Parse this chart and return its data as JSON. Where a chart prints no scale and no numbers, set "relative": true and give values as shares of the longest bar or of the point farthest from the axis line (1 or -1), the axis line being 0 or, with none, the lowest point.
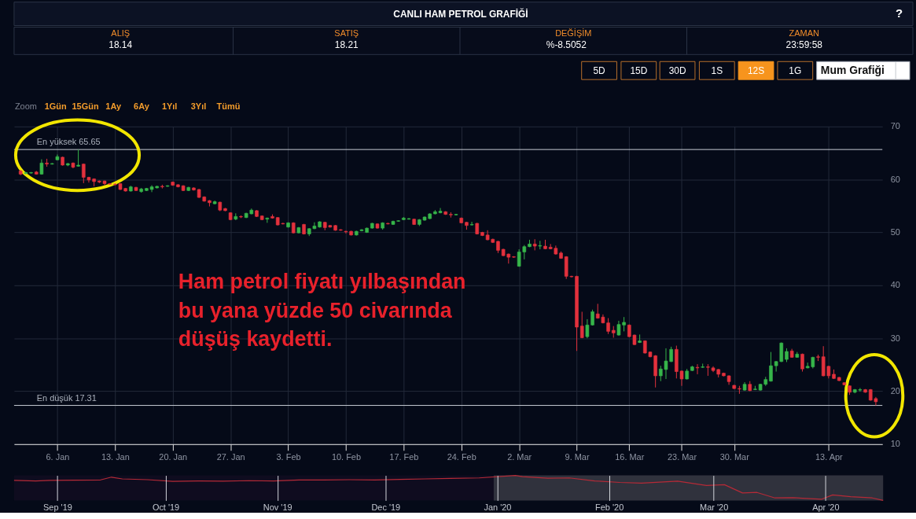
{
  "chart_data": [
    {
      "type": "other",
      "title": "CANLI HAM PETROL GRAFİĞİ",
      "annotations": [
        "ALIŞ",
        "18.14",
        "SATIŞ",
        "18.21",
        "DEĞİŞİM",
        "%-8.5052",
        "ZAMAN",
        "23:59:58",
        "5D",
        "15D",
        "30D",
        "1S",
        "12S",
        "1G",
        "Mum Grafiği",
        "Zoom",
        "1Gün",
        "15Gün",
        "1Ay",
        "6Ay",
        "1Yıl",
        "3Yıl",
        "Tümü",
        "?"
      ]
    },
    {
      "type": "candlestick",
      "categories": [
        null,
        null,
        null,
        null,
        null,
        null,
        null,
        "6. Jan",
        null,
        null,
        null,
        null,
        null,
        null,
        null,
        null,
        null,
        null,
        "13. Jan",
        null,
        null,
        null,
        null,
        null,
        null,
        null,
        null,
        null,
        null,
        "20. Jan",
        null,
        null,
        null,
        null,
        null,
        null,
        null,
        null,
        null,
        null,
        "27. Jan",
        null,
        null,
        null,
        null,
        null,
        null,
        null,
        null,
        null,
        null,
        "3. Feb",
        null,
        null,
        null,
        null,
        null,
        null,
        null,
        null,
        null,
        null,
        "10. Feb",
        null,
        null,
        null,
        null,
        null,
        null,
        null,
        null,
        null,
        null,
        "17. Feb",
        null,
        null,
        null,
        null,
        null,
        null,
        null,
        null,
        null,
        null,
        "24. Feb",
        null,
        null,
        null,
        null,
        null,
        null,
        null,
        null,
        null,
        null,
        "2. Mar",
        null,
        null,
        null,
        null,
        null,
        null,
        null,
        null,
        null,
        null,
        "9. Mar",
        null,
        null,
        null,
        null,
        null,
        null,
        null,
        null,
        null,
        "16. Mar",
        null,
        null,
        null,
        null,
        null,
        null,
        null,
        null,
        null,
        "23. Mar",
        null,
        null,
        null,
        null,
        null,
        null,
        null,
        null,
        null,
        "30. Mar",
        null,
        null,
        null,
        null,
        null,
        null,
        null,
        null,
        null,
        null,
        null,
        null,
        null,
        null,
        null,
        null,
        null,
        "13. Apr",
        null,
        null,
        null,
        null,
        null,
        null,
        null,
        null,
        null
      ],
      "ohlc": [
        [
          61.6,
          61.8,
          60.8,
          61.0
        ],
        [
          61.1,
          61.4,
          61.0,
          61.3
        ],
        [
          61.2,
          61.4,
          61.1,
          61.3
        ],
        [
          61.4,
          61.6,
          60.9,
          61.0
        ],
        [
          61.0,
          63.8,
          60.9,
          63.1
        ],
        [
          63.1,
          63.9,
          62.4,
          62.9
        ],
        [
          62.9,
          63.1,
          62.8,
          63.0
        ],
        [
          63.7,
          64.7,
          63.6,
          64.3
        ],
        [
          64.2,
          64.3,
          62.6,
          62.7
        ],
        [
          62.7,
          63.1,
          62.5,
          63.0
        ],
        [
          63.1,
          63.2,
          62.1,
          62.3
        ],
        [
          62.5,
          65.65,
          62.4,
          62.7
        ],
        [
          62.9,
          63.0,
          59.3,
          60.4
        ],
        [
          60.4,
          60.5,
          59.4,
          59.9
        ],
        [
          60.1,
          60.2,
          58.7,
          59.6
        ],
        [
          59.7,
          59.8,
          59.3,
          59.5
        ],
        [
          59.7,
          59.8,
          58.9,
          59.2
        ],
        [
          59.2,
          59.3,
          59.0,
          59.1
        ],
        [
          59.1,
          59.3,
          58.9,
          59.0
        ],
        [
          59.2,
          59.3,
          58.0,
          58.1
        ],
        [
          58.3,
          58.4,
          57.7,
          57.8
        ],
        [
          57.8,
          58.8,
          57.7,
          58.6
        ],
        [
          58.5,
          58.6,
          57.8,
          57.9
        ],
        [
          57.7,
          58.4,
          57.5,
          58.2
        ],
        [
          57.9,
          58.4,
          57.8,
          58.3
        ],
        [
          58.1,
          58.9,
          57.6,
          58.6
        ],
        [
          58.4,
          58.8,
          58.3,
          58.7
        ],
        [
          58.7,
          59.0,
          58.3,
          58.6
        ],
        [
          58.7,
          58.9,
          58.6,
          58.8
        ],
        [
          59.5,
          59.6,
          58.8,
          58.9
        ],
        [
          59.0,
          59.1,
          58.5,
          58.6
        ],
        [
          58.8,
          58.9,
          57.8,
          57.9
        ],
        [
          57.9,
          58.6,
          57.8,
          58.5
        ],
        [
          58.4,
          58.5,
          57.9,
          58.0
        ],
        [
          58.1,
          58.2,
          56.5,
          56.6
        ],
        [
          56.7,
          56.8,
          55.8,
          55.9
        ],
        [
          56.0,
          56.1,
          54.9,
          55.6
        ],
        [
          55.4,
          56.0,
          55.3,
          55.8
        ],
        [
          55.7,
          55.8,
          54.0,
          54.2
        ],
        [
          54.5,
          54.6,
          54.0,
          54.1
        ],
        [
          53.7,
          53.8,
          52.3,
          52.4
        ],
        [
          52.5,
          53.6,
          52.3,
          53.0
        ],
        [
          53.0,
          53.2,
          52.7,
          52.9
        ],
        [
          52.8,
          53.7,
          52.7,
          53.6
        ],
        [
          53.5,
          54.5,
          53.4,
          54.2
        ],
        [
          54.1,
          54.2,
          52.9,
          53.0
        ],
        [
          53.1,
          53.2,
          52.3,
          52.4
        ],
        [
          52.5,
          52.8,
          51.8,
          52.7
        ],
        [
          53.0,
          53.4,
          52.6,
          52.7
        ],
        [
          52.8,
          52.9,
          51.3,
          51.4
        ],
        [
          51.7,
          51.8,
          51.5,
          51.6
        ],
        [
          51.0,
          51.9,
          50.9,
          51.8
        ],
        [
          51.8,
          51.9,
          49.8,
          49.9
        ],
        [
          49.9,
          51.0,
          49.8,
          50.9
        ],
        [
          51.5,
          51.6,
          49.6,
          49.7
        ],
        [
          49.7,
          50.8,
          49.3,
          50.7
        ],
        [
          50.7,
          51.9,
          50.6,
          51.2
        ],
        [
          51.0,
          52.1,
          50.9,
          52.0
        ],
        [
          51.9,
          52.0,
          50.4,
          50.9
        ],
        [
          51.3,
          51.4,
          50.9,
          51.0
        ],
        [
          51.3,
          51.4,
          50.3,
          50.4
        ],
        [
          50.5,
          50.6,
          50.3,
          50.4
        ],
        [
          50.2,
          50.3,
          49.8,
          50.1
        ],
        [
          50.2,
          50.3,
          49.4,
          49.5
        ],
        [
          49.5,
          50.3,
          49.4,
          50.2
        ],
        [
          50.3,
          50.6,
          50.2,
          50.5
        ],
        [
          50.0,
          50.9,
          49.9,
          50.8
        ],
        [
          50.8,
          51.8,
          50.7,
          51.7
        ],
        [
          51.6,
          51.7,
          50.7,
          50.8
        ],
        [
          50.8,
          51.9,
          50.5,
          51.8
        ],
        [
          51.7,
          51.8,
          51.5,
          51.6
        ],
        [
          51.5,
          52.2,
          51.4,
          52.1
        ],
        [
          52.1,
          52.3,
          52.0,
          52.2
        ],
        [
          52.4,
          52.9,
          52.3,
          52.7
        ],
        [
          52.5,
          52.7,
          52.4,
          52.6
        ],
        [
          52.5,
          52.6,
          51.4,
          51.5
        ],
        [
          51.5,
          52.5,
          51.2,
          52.4
        ],
        [
          52.3,
          53.0,
          52.2,
          52.9
        ],
        [
          52.6,
          53.6,
          52.5,
          53.5
        ],
        [
          53.5,
          54.2,
          53.4,
          53.9
        ],
        [
          53.7,
          54.6,
          53.6,
          54.0
        ],
        [
          53.9,
          54.0,
          53.3,
          53.4
        ],
        [
          53.4,
          53.8,
          52.8,
          53.3
        ],
        [
          53.3,
          53.5,
          53.2,
          53.4
        ],
        [
          52.7,
          52.8,
          51.7,
          51.8
        ],
        [
          51.9,
          52.0,
          50.5,
          51.3
        ],
        [
          51.4,
          52.0,
          51.3,
          51.5
        ],
        [
          51.7,
          51.8,
          49.6,
          49.7
        ],
        [
          50.0,
          50.1,
          49.3,
          49.4
        ],
        [
          49.5,
          50.4,
          48.5,
          48.6
        ],
        [
          48.7,
          48.8,
          48.0,
          48.1
        ],
        [
          48.3,
          48.4,
          46.1,
          46.6
        ],
        [
          46.8,
          46.9,
          45.5,
          45.6
        ],
        [
          45.9,
          46.0,
          44.1,
          45.3
        ],
        [
          45.4,
          45.5,
          45.2,
          45.3
        ],
        [
          43.6,
          46.8,
          43.5,
          46.3
        ],
        [
          46.3,
          47.6,
          44.9,
          47.3
        ],
        [
          47.3,
          48.6,
          47.2,
          47.8
        ],
        [
          47.8,
          48.7,
          46.6,
          47.4
        ],
        [
          47.4,
          48.4,
          46.8,
          47.5
        ],
        [
          47.4,
          48.6,
          46.8,
          46.9
        ],
        [
          47.2,
          47.8,
          46.8,
          46.9
        ],
        [
          47.0,
          47.5,
          45.8,
          45.9
        ],
        [
          46.1,
          46.4,
          45.0,
          45.1
        ],
        [
          45.4,
          45.5,
          41.2,
          41.7
        ],
        [
          41.7,
          41.8,
          41.5,
          41.6
        ],
        [
          41.7,
          41.8,
          27.6,
          32.1
        ],
        [
          32.3,
          35.0,
          30.0,
          30.1
        ],
        [
          30.3,
          33.6,
          30.0,
          32.5
        ],
        [
          32.5,
          35.4,
          32.4,
          35.0
        ],
        [
          34.6,
          36.5,
          33.7,
          33.8
        ],
        [
          34.0,
          34.5,
          32.8,
          32.9
        ],
        [
          32.9,
          33.8,
          30.8,
          31.3
        ],
        [
          31.5,
          32.3,
          30.1,
          31.0
        ],
        [
          30.6,
          33.3,
          30.5,
          32.6
        ],
        [
          32.5,
          34.0,
          31.3,
          33.0
        ],
        [
          32.5,
          32.6,
          30.2,
          30.3
        ],
        [
          30.6,
          30.7,
          28.7,
          28.8
        ],
        [
          29.2,
          30.7,
          29.1,
          29.5
        ],
        [
          29.5,
          29.6,
          27.1,
          27.2
        ],
        [
          27.4,
          27.5,
          26.4,
          26.5
        ],
        [
          26.7,
          26.8,
          20.7,
          22.9
        ],
        [
          22.9,
          24.8,
          21.9,
          24.2
        ],
        [
          24.1,
          28.1,
          22.3,
          25.7
        ],
        [
          25.6,
          28.4,
          25.5,
          27.9
        ],
        [
          27.9,
          28.6,
          22.4,
          23.7
        ],
        [
          23.8,
          23.9,
          21.0,
          22.3
        ],
        [
          22.3,
          24.2,
          22.2,
          23.8
        ],
        [
          23.9,
          24.8,
          23.8,
          24.6
        ],
        [
          24.5,
          25.1,
          23.2,
          24.4
        ],
        [
          24.5,
          25.2,
          24.4,
          24.6
        ],
        [
          24.6,
          25.1,
          22.9,
          24.5
        ],
        [
          24.4,
          24.7,
          23.6,
          23.9
        ],
        [
          24.1,
          24.2,
          22.6,
          23.2
        ],
        [
          23.4,
          23.5,
          22.8,
          22.9
        ],
        [
          22.9,
          23.0,
          21.2,
          21.8
        ],
        [
          21.1,
          21.2,
          20.4,
          20.5
        ],
        [
          20.5,
          21.0,
          19.5,
          20.4
        ],
        [
          20.2,
          21.7,
          20.1,
          21.3
        ],
        [
          21.3,
          21.9,
          20.0,
          20.1
        ],
        [
          20.3,
          21.0,
          20.2,
          20.4
        ],
        [
          20.2,
          21.4,
          20.1,
          21.3
        ],
        [
          21.3,
          22.7,
          21.0,
          22.2
        ],
        [
          21.9,
          27.4,
          21.8,
          24.8
        ],
        [
          24.8,
          25.7,
          23.7,
          25.6
        ],
        [
          25.6,
          29.2,
          25.5,
          29.1
        ],
        [
          26.0,
          28.1,
          25.5,
          27.5
        ],
        [
          27.6,
          28.0,
          26.3,
          26.4
        ],
        [
          26.4,
          27.4,
          26.3,
          27.0
        ],
        [
          27.0,
          27.1,
          23.7,
          24.2
        ],
        [
          24.4,
          25.4,
          24.3,
          24.7
        ],
        [
          24.6,
          26.5,
          24.3,
          26.4
        ],
        [
          26.5,
          26.9,
          25.7,
          26.4
        ],
        [
          26.5,
          28.5,
          22.8,
          22.9
        ],
        [
          24.7,
          24.8,
          22.4,
          22.9
        ],
        [
          23.2,
          24.1,
          22.3,
          22.4
        ],
        [
          22.6,
          22.7,
          21.9,
          22.0
        ],
        [
          21.6,
          21.7,
          21.1,
          21.2
        ],
        [
          21.0,
          21.1,
          19.3,
          19.8
        ],
        [
          19.8,
          20.4,
          19.6,
          20.3
        ],
        [
          20.2,
          20.6,
          19.9,
          20.3
        ],
        [
          20.3,
          20.4,
          19.7,
          19.8
        ],
        [
          20.3,
          20.4,
          18.2,
          18.3
        ],
        [
          18.6,
          18.9,
          17.31,
          18.0
        ]
      ],
      "colors": [
        "#e3313d",
        "#36b54a",
        "#36b54a",
        "#e3313d",
        "#36b54a",
        "#e3313d",
        "#36b54a",
        "#36b54a",
        "#e3313d",
        "#36b54a",
        "#e3313d",
        "#36b54a",
        "#e3313d",
        "#e3313d",
        "#e3313d",
        "#e3313d",
        "#e3313d",
        "#e3313d",
        "#e3313d",
        "#e3313d",
        "#e3313d",
        "#36b54a",
        "#e3313d",
        "#36b54a",
        "#36b54a",
        "#36b54a",
        "#36b54a",
        "#e3313d",
        "#36b54a",
        "#e3313d",
        "#e3313d",
        "#e3313d",
        "#36b54a",
        "#e3313d",
        "#e3313d",
        "#e3313d",
        "#e3313d",
        "#36b54a",
        "#e3313d",
        "#e3313d",
        "#e3313d",
        "#36b54a",
        "#e3313d",
        "#36b54a",
        "#36b54a",
        "#e3313d",
        "#e3313d",
        "#36b54a",
        "#e3313d",
        "#e3313d",
        "#e3313d",
        "#36b54a",
        "#e3313d",
        "#36b54a",
        "#e3313d",
        "#36b54a",
        "#36b54a",
        "#36b54a",
        "#e3313d",
        "#e3313d",
        "#e3313d",
        "#e3313d",
        "#e3313d",
        "#e3313d",
        "#36b54a",
        "#36b54a",
        "#36b54a",
        "#36b54a",
        "#e3313d",
        "#36b54a",
        "#e3313d",
        "#36b54a",
        "#36b54a",
        "#36b54a",
        "#36b54a",
        "#e3313d",
        "#36b54a",
        "#36b54a",
        "#36b54a",
        "#36b54a",
        "#36b54a",
        "#e3313d",
        "#e3313d",
        "#36b54a",
        "#e3313d",
        "#e3313d",
        "#36b54a",
        "#e3313d",
        "#e3313d",
        "#e3313d",
        "#e3313d",
        "#e3313d",
        "#e3313d",
        "#e3313d",
        "#e3313d",
        "#36b54a",
        "#36b54a",
        "#36b54a",
        "#e3313d",
        "#36b54a",
        "#e3313d",
        "#e3313d",
        "#e3313d",
        "#e3313d",
        "#e3313d",
        "#e3313d",
        "#e3313d",
        "#e3313d",
        "#36b54a",
        "#36b54a",
        "#e3313d",
        "#e3313d",
        "#e3313d",
        "#e3313d",
        "#36b54a",
        "#36b54a",
        "#e3313d",
        "#e3313d",
        "#36b54a",
        "#e3313d",
        "#e3313d",
        "#e3313d",
        "#36b54a",
        "#36b54a",
        "#36b54a",
        "#e3313d",
        "#e3313d",
        "#36b54a",
        "#36b54a",
        "#e3313d",
        "#36b54a",
        "#e3313d",
        "#e3313d",
        "#e3313d",
        "#e3313d",
        "#e3313d",
        "#e3313d",
        "#e3313d",
        "#36b54a",
        "#e3313d",
        "#36b54a",
        "#36b54a",
        "#36b54a",
        "#36b54a",
        "#36b54a",
        "#36b54a",
        "#36b54a",
        "#e3313d",
        "#36b54a",
        "#e3313d",
        "#36b54a",
        "#36b54a",
        "#e3313d",
        "#e3313d",
        "#e3313d",
        "#e3313d",
        "#e3313d",
        "#e3313d",
        "#e3313d",
        "#36b54a",
        "#36b54a",
        "#e3313d",
        "#e3313d",
        "#e3313d"
      ],
      "ylim": [
        10,
        70
      ],
      "yticks": [
        10,
        20,
        30,
        40,
        50,
        60,
        70
      ],
      "grid": true,
      "ref_lines": [
        {
          "axis": "y",
          "value": 65.65,
          "label": "En yüksek 65.65",
          "color": "#c9cdd5"
        },
        {
          "axis": "y",
          "value": 17.31,
          "label": "En düşük 17.31",
          "color": "#c9cdd5"
        }
      ],
      "annotations": [
        "Ham petrol fiyatı yılbaşından\nbu yana yüzde 50 civarında\ndüşüş kaydetti."
      ]
    },
    {
      "type": "line",
      "relative": true,
      "color": "#b52a37",
      "x": [
        "2019-08-20",
        "2019-08-26",
        "2019-08-30",
        "2019-09-06",
        "2019-09-13",
        "2019-09-16",
        "2019-09-19",
        "2019-09-26",
        "2019-10-03",
        "2019-10-10",
        "2019-10-17",
        "2019-10-24",
        "2019-10-31",
        "2019-11-07",
        "2019-11-14",
        "2019-11-21",
        "2019-11-28",
        "2019-12-05",
        "2019-12-12",
        "2019-12-19",
        "2019-12-27",
        "2020-01-06",
        "2020-01-08",
        "2020-01-15",
        "2020-01-21",
        "2020-01-28",
        "2020-02-04",
        "2020-02-10",
        "2020-02-20",
        "2020-02-28",
        "2020-03-04",
        "2020-03-09",
        "2020-03-13",
        "2020-03-18",
        "2020-03-23",
        "2020-03-31",
        "2020-04-03",
        "2020-04-08",
        "2020-04-14",
        "2020-04-17"
      ],
      "values": [
        0.8,
        0.78,
        0.8,
        0.81,
        0.82,
        0.93,
        0.86,
        0.83,
        0.76,
        0.78,
        0.77,
        0.79,
        0.78,
        0.82,
        0.82,
        0.83,
        0.82,
        0.84,
        0.86,
        0.88,
        0.9,
        1,
        0.95,
        0.89,
        0.9,
        0.78,
        0.72,
        0.69,
        0.77,
        0.6,
        0.63,
        0.3,
        0.32,
        0.1,
        0.11,
        0.05,
        0.22,
        0.15,
        0.1,
        0
      ],
      "xlim": [
        "2019-08-20",
        "2020-04-17"
      ],
      "xticks": [
        {
          "value": "2019-09-01",
          "label": "Sep '19"
        },
        {
          "value": "2019-10-01",
          "label": "Oct '19"
        },
        {
          "value": "2019-11-01",
          "label": "Nov '19"
        },
        {
          "value": "2019-12-01",
          "label": "Dec '19"
        },
        {
          "value": "2020-01-01",
          "label": "Jan '20"
        },
        {
          "value": "2020-02-01",
          "label": "Feb '20"
        },
        {
          "value": "2020-03-01",
          "label": "Mar '20"
        },
        {
          "value": "2020-04-01",
          "label": "Apr '20"
        }
      ],
      "grid": "x",
      "bands": [
        {
          "axis": "x",
          "from": "2019-12-31",
          "to": "2020-04-17",
          "color": "#30323d"
        }
      ]
    }
  ]
}
